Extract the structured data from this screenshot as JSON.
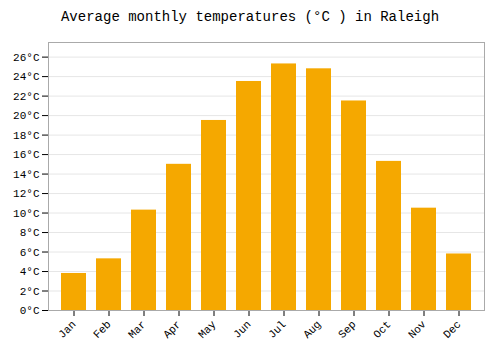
{
  "chart_data": {
    "type": "bar",
    "title": "Average monthly temperatures (°C ) in Raleigh",
    "categories": [
      "Jan",
      "Feb",
      "Mar",
      "Apr",
      "May",
      "Jun",
      "Jul",
      "Aug",
      "Sep",
      "Oct",
      "Nov",
      "Dec"
    ],
    "values": [
      3.8,
      5.3,
      10.3,
      15.0,
      19.5,
      23.5,
      25.3,
      24.8,
      21.5,
      15.3,
      10.5,
      5.8
    ],
    "color": "#F5A800",
    "ylim": [
      0,
      27.5
    ],
    "yticks": [
      {
        "value": 0,
        "label": "0°C"
      },
      {
        "value": 2,
        "label": "2°C"
      },
      {
        "value": 4,
        "label": "4°C"
      },
      {
        "value": 6,
        "label": "6°C"
      },
      {
        "value": 8,
        "label": "8°C"
      },
      {
        "value": 10,
        "label": "10°C"
      },
      {
        "value": 12,
        "label": "12°C"
      },
      {
        "value": 14,
        "label": "14°C"
      },
      {
        "value": 16,
        "label": "16°C"
      },
      {
        "value": 18,
        "label": "18°C"
      },
      {
        "value": 20,
        "label": "20°C"
      },
      {
        "value": 22,
        "label": "22°C"
      },
      {
        "value": 24,
        "label": "24°C"
      },
      {
        "value": 26,
        "label": "26°C"
      }
    ],
    "grid": true
  }
}
